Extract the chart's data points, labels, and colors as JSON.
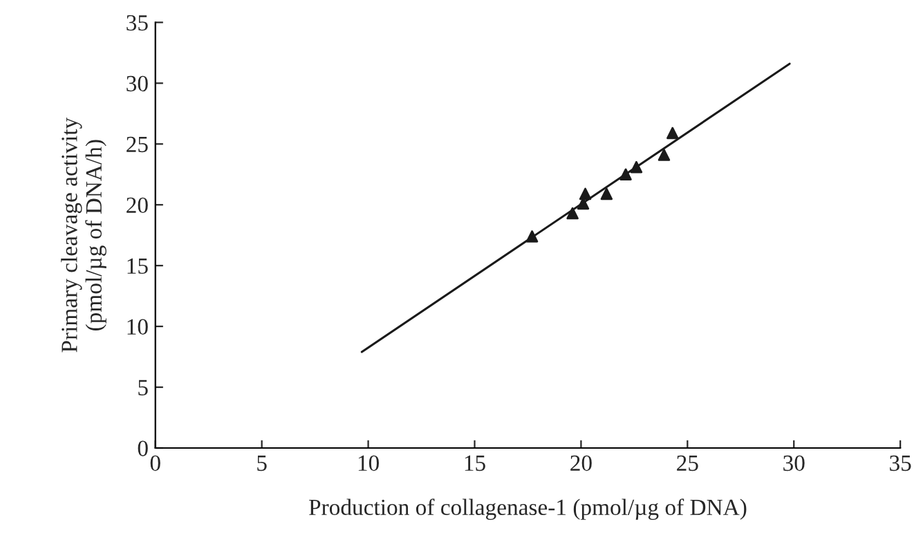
{
  "chart_data": {
    "type": "scatter",
    "xlabel": "Production of collagenase-1 (pmol/µg of DNA)",
    "ylabel": "Primary cleavage activity\n(pmol/µg of DNA/h)",
    "xlim": [
      0,
      35
    ],
    "xticks": [
      0,
      5,
      10,
      15,
      20,
      25,
      30,
      35
    ],
    "ylim": [
      0,
      35
    ],
    "yticks": [
      0,
      5,
      10,
      15,
      20,
      25,
      30,
      35
    ],
    "grid": false,
    "legend": false,
    "series": [
      {
        "color": "#1a1a1a",
        "marker": "triangle",
        "x": [
          17.7,
          19.6,
          20.1,
          20.2,
          21.2,
          22.1,
          22.6,
          23.9,
          24.3
        ],
        "values": [
          17.4,
          19.3,
          20.1,
          20.9,
          20.9,
          22.5,
          23.1,
          24.1,
          25.9
        ]
      },
      {
        "type": "line",
        "color": "#1a1a1a",
        "marker": "none",
        "line_style": "solid",
        "x": [
          9.7,
          29.8
        ],
        "values": [
          7.9,
          31.6
        ]
      }
    ]
  }
}
